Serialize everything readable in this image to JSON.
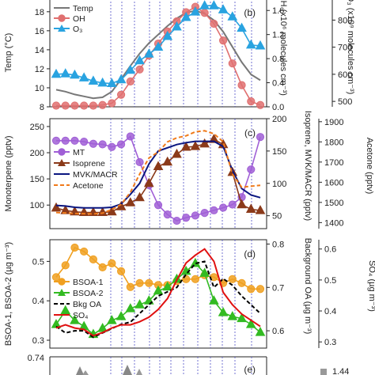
{
  "chart_data": [
    {
      "type": "line",
      "panel_label": "(b)",
      "x": [
        0,
        1,
        2,
        3,
        4,
        5,
        6,
        7,
        8,
        9,
        10,
        11,
        12,
        13,
        14,
        15,
        16,
        17,
        18,
        19,
        20,
        21,
        22
      ],
      "left_axis": {
        "label": "Temp (°C)",
        "ticks": [
          "8",
          "10",
          "12",
          "14",
          "16",
          "18"
        ],
        "ylim": [
          8,
          19.4
        ]
      },
      "right_axis_1": {
        "label": "OH (x10⁶ molecules cm⁻³)",
        "ticks": [
          "0.0",
          "0.4",
          "0.8",
          "1.2",
          "1.6"
        ],
        "ylim": [
          0,
          1.8
        ]
      },
      "right_axis_2": {
        "label": "O₃ (x10⁹ molecules cm⁻³)",
        "ticks": [
          "500",
          "600",
          "700",
          "800"
        ],
        "ylim": [
          480,
          880
        ]
      },
      "series": [
        {
          "name": "Temp",
          "axis": "left",
          "color": "#777777",
          "marker": "none",
          "values": [
            9.8,
            9.6,
            9.3,
            9.1,
            8.9,
            9.0,
            9.6,
            10.9,
            12.3,
            13.6,
            14.7,
            15.6,
            16.5,
            17.3,
            17.9,
            18.1,
            17.8,
            17.1,
            15.9,
            14.3,
            12.7,
            11.4,
            10.8
          ]
        },
        {
          "name": "OH",
          "axis": "right_1",
          "color": "#E07070",
          "marker": "circle",
          "values": [
            0.02,
            0.02,
            0.02,
            0.02,
            0.02,
            0.03,
            0.06,
            0.2,
            0.42,
            0.62,
            0.85,
            1.05,
            1.25,
            1.42,
            1.57,
            1.66,
            1.56,
            1.38,
            1.1,
            0.72,
            0.36,
            0.09,
            0.03
          ]
        },
        {
          "name": "O₃",
          "axis": "right_2",
          "color": "#29A3E0",
          "marker": "triangle",
          "values": [
            600,
            602,
            597,
            587,
            575,
            568,
            566,
            580,
            615,
            650,
            675,
            700,
            740,
            775,
            810,
            830,
            853,
            853,
            838,
            812,
            770,
            708,
            705
          ]
        }
      ]
    },
    {
      "type": "line",
      "panel_label": "(c)",
      "x": [
        0,
        1,
        2,
        3,
        4,
        5,
        6,
        7,
        8,
        9,
        10,
        11,
        12,
        13,
        14,
        15,
        16,
        17,
        18,
        19,
        20,
        21,
        22
      ],
      "left_axis": {
        "label": "Monoterpene (pptv)",
        "ticks": [
          "100",
          "150",
          "200",
          "250"
        ],
        "ylim": [
          55,
          265
        ]
      },
      "right_axis_1": {
        "label": "Isoprene, MVK/MACR (pptv)",
        "ticks": [
          "50",
          "100",
          "150",
          "200"
        ],
        "ylim": [
          30,
          200
        ]
      },
      "right_axis_2": {
        "label": "Acetone (pptv)",
        "ticks": [
          "1400",
          "1500",
          "1600",
          "1700",
          "1800",
          "1900"
        ],
        "ylim": [
          1370,
          1915
        ]
      },
      "series": [
        {
          "name": "MT",
          "axis": "left",
          "color": "#A05FD6",
          "marker": "circle",
          "values": [
            223,
            223,
            223,
            221,
            217,
            216,
            211,
            216,
            231,
            182,
            138,
            100,
            82,
            70,
            76,
            80,
            85,
            90,
            95,
            101,
            115,
            168,
            230
          ]
        },
        {
          "name": "Isoprene",
          "axis": "right_1",
          "color": "#8B3A1A",
          "marker": "triangle",
          "values": [
            62,
            58,
            56,
            55,
            55,
            55,
            56,
            64,
            70,
            78,
            100,
            126,
            133,
            145,
            156,
            157,
            161,
            168,
            160,
            117,
            67,
            60,
            58
          ]
        },
        {
          "name": "MVK/MACR",
          "axis": "right_1",
          "color": "#0A1680",
          "marker": "none",
          "values": [
            66,
            65,
            63,
            62,
            62,
            62,
            63,
            68,
            83,
            100,
            130,
            150,
            155,
            160,
            163,
            165,
            165,
            165,
            157,
            120,
            92,
            82,
            78
          ]
        },
        {
          "name": "Acetone",
          "axis": "right_2",
          "color": "#F07A1A",
          "marker": "none",
          "dash": true,
          "values": [
            1450,
            1448,
            1445,
            1444,
            1443,
            1447,
            1465,
            1490,
            1550,
            1640,
            1720,
            1750,
            1800,
            1820,
            1830,
            1850,
            1855,
            1840,
            1800,
            1640,
            1575,
            1580,
            1585
          ]
        }
      ]
    },
    {
      "type": "line",
      "panel_label": "(d)",
      "x": [
        0,
        1,
        2,
        3,
        4,
        5,
        6,
        7,
        8,
        9,
        10,
        11,
        12,
        13,
        14,
        15,
        16,
        17,
        18,
        19,
        20,
        21,
        22
      ],
      "left_axis": {
        "label": "BSOA-1, BSOA-2 (µg m⁻³)",
        "ticks": [
          "0.3",
          "0.4",
          "0.5"
        ],
        "ylim": [
          0.28,
          0.555
        ]
      },
      "right_axis_1": {
        "label": "Background OA (µg m⁻³)",
        "ticks": [
          "0.6",
          "0.7",
          "0.8"
        ],
        "ylim": [
          0.56,
          0.81
        ]
      },
      "right_axis_2": {
        "label": "SO₄ (µg m⁻³)",
        "ticks": [
          "0.3",
          "0.4",
          "0.5",
          "0.6"
        ],
        "ylim": [
          0.28,
          0.63
        ]
      },
      "series": [
        {
          "name": "BSOA-1",
          "axis": "left",
          "color": "#F0A020",
          "marker": "circle",
          "values": [
            0.46,
            0.49,
            0.535,
            0.525,
            0.505,
            0.485,
            0.495,
            0.475,
            0.435,
            0.445,
            0.445,
            0.44,
            0.44,
            0.45,
            0.455,
            0.455,
            0.465,
            0.46,
            0.445,
            0.455,
            0.445,
            0.43,
            0.43
          ]
        },
        {
          "name": "BSOA-2",
          "axis": "left",
          "color": "#33BB22",
          "marker": "triangle",
          "values": [
            0.34,
            0.375,
            0.35,
            0.335,
            0.315,
            0.33,
            0.35,
            0.36,
            0.38,
            0.39,
            0.4,
            0.425,
            0.435,
            0.455,
            0.475,
            0.495,
            0.47,
            0.4,
            0.37,
            0.36,
            0.355,
            0.34,
            0.32
          ]
        },
        {
          "name": "Bkg OA",
          "axis": "right_1",
          "color": "#000000",
          "marker": "none",
          "dash": true,
          "values": [
            0.61,
            0.595,
            0.6,
            0.6,
            0.585,
            0.595,
            0.605,
            0.615,
            0.62,
            0.64,
            0.66,
            0.68,
            0.69,
            0.7,
            0.73,
            0.755,
            0.76,
            0.7,
            0.72,
            0.705,
            0.68,
            0.66,
            0.64
          ]
        },
        {
          "name": "SO₄",
          "axis": "right_2",
          "color": "#E01010",
          "marker": "none",
          "values": [
            0.345,
            0.355,
            0.345,
            0.34,
            0.32,
            0.33,
            0.345,
            0.355,
            0.355,
            0.365,
            0.38,
            0.405,
            0.44,
            0.5,
            0.555,
            0.58,
            0.6,
            0.56,
            0.46,
            0.42,
            0.39,
            0.37,
            0.35
          ]
        }
      ]
    },
    {
      "type": "area",
      "panel_label": "(e)",
      "left_axis": {
        "ticks": [
          "0.74"
        ]
      },
      "right_axis_1": {
        "ticks": [
          "1.44"
        ]
      }
    }
  ],
  "colors": {
    "grid_dotted": "#5050C8",
    "axis": "#222222"
  }
}
